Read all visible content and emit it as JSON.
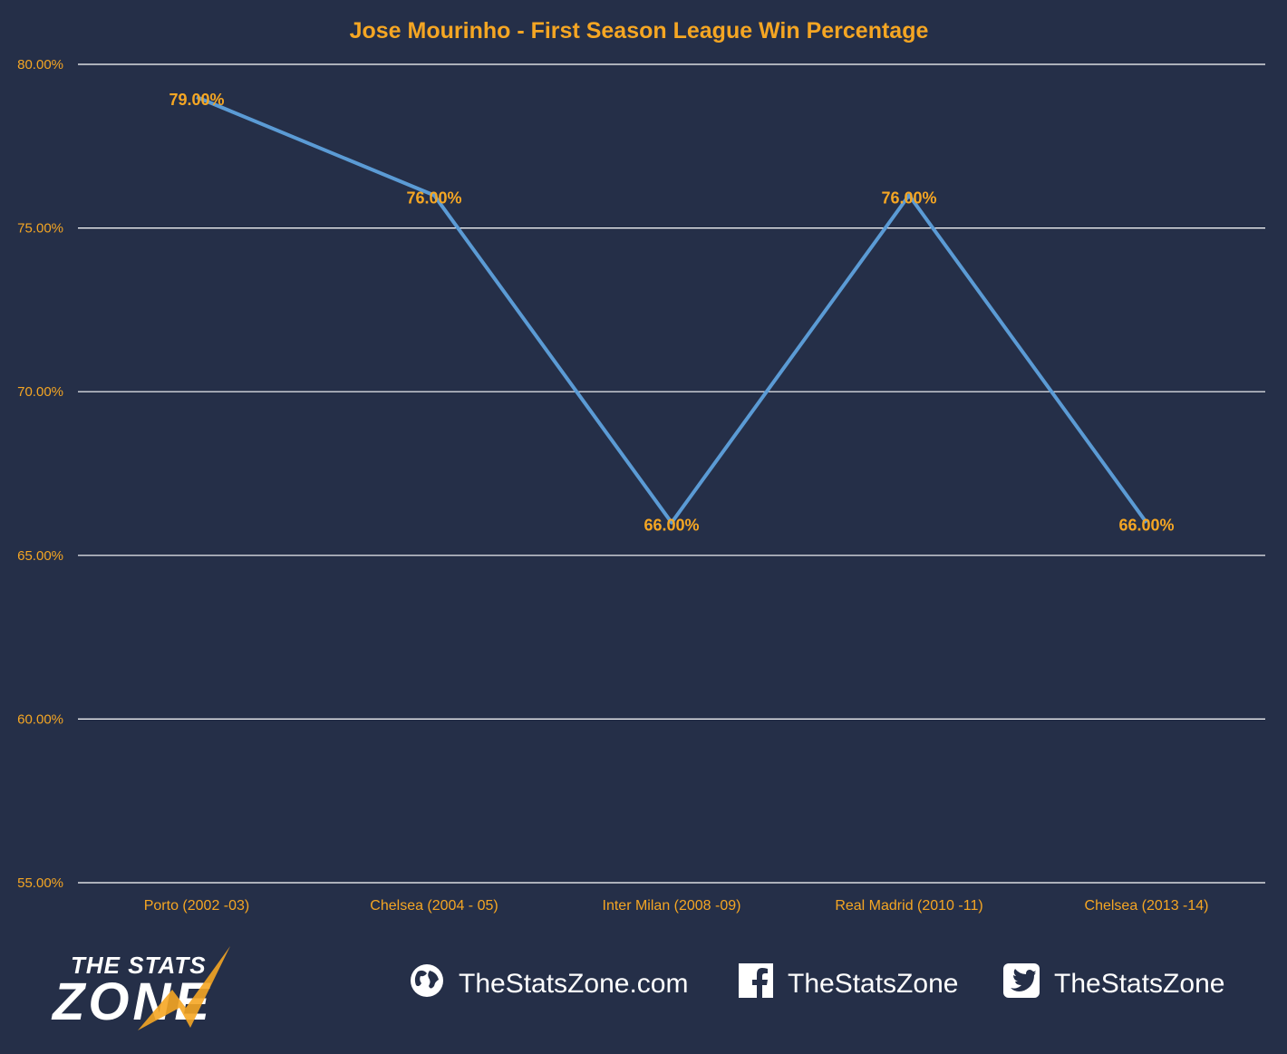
{
  "chart_data": {
    "type": "line",
    "title": "Jose Mourinho - First Season League Win Percentage",
    "categories": [
      "Porto (2002 -03)",
      "Chelsea (2004 - 05)",
      "Inter Milan (2008 -09)",
      "Real Madrid (2010 -11)",
      "Chelsea (2013 -14)"
    ],
    "values": [
      79.0,
      76.0,
      66.0,
      76.0,
      66.0
    ],
    "data_labels": [
      "79.00%",
      "76.00%",
      "66.00%",
      "76.00%",
      "66.00%"
    ],
    "ylim": [
      55,
      80
    ],
    "yticks": [
      80,
      75,
      70,
      65,
      60,
      55
    ],
    "ytick_labels": [
      "80.00%",
      "75.00%",
      "70.00%",
      "65.00%",
      "60.00%",
      "55.00%"
    ],
    "grid": true,
    "colors": {
      "background": "#252f48",
      "line": "#5b9bd5",
      "title": "#f5a623",
      "labels": "#f5a623",
      "grid": "#ffffff"
    }
  },
  "footer": {
    "logo_line1": "THE STATS",
    "logo_line2": "ZONE",
    "website": "TheStatsZone.com",
    "facebook": "TheStatsZone",
    "twitter": "TheStatsZone",
    "icons": [
      "globe-icon",
      "facebook-icon",
      "twitter-icon"
    ]
  }
}
